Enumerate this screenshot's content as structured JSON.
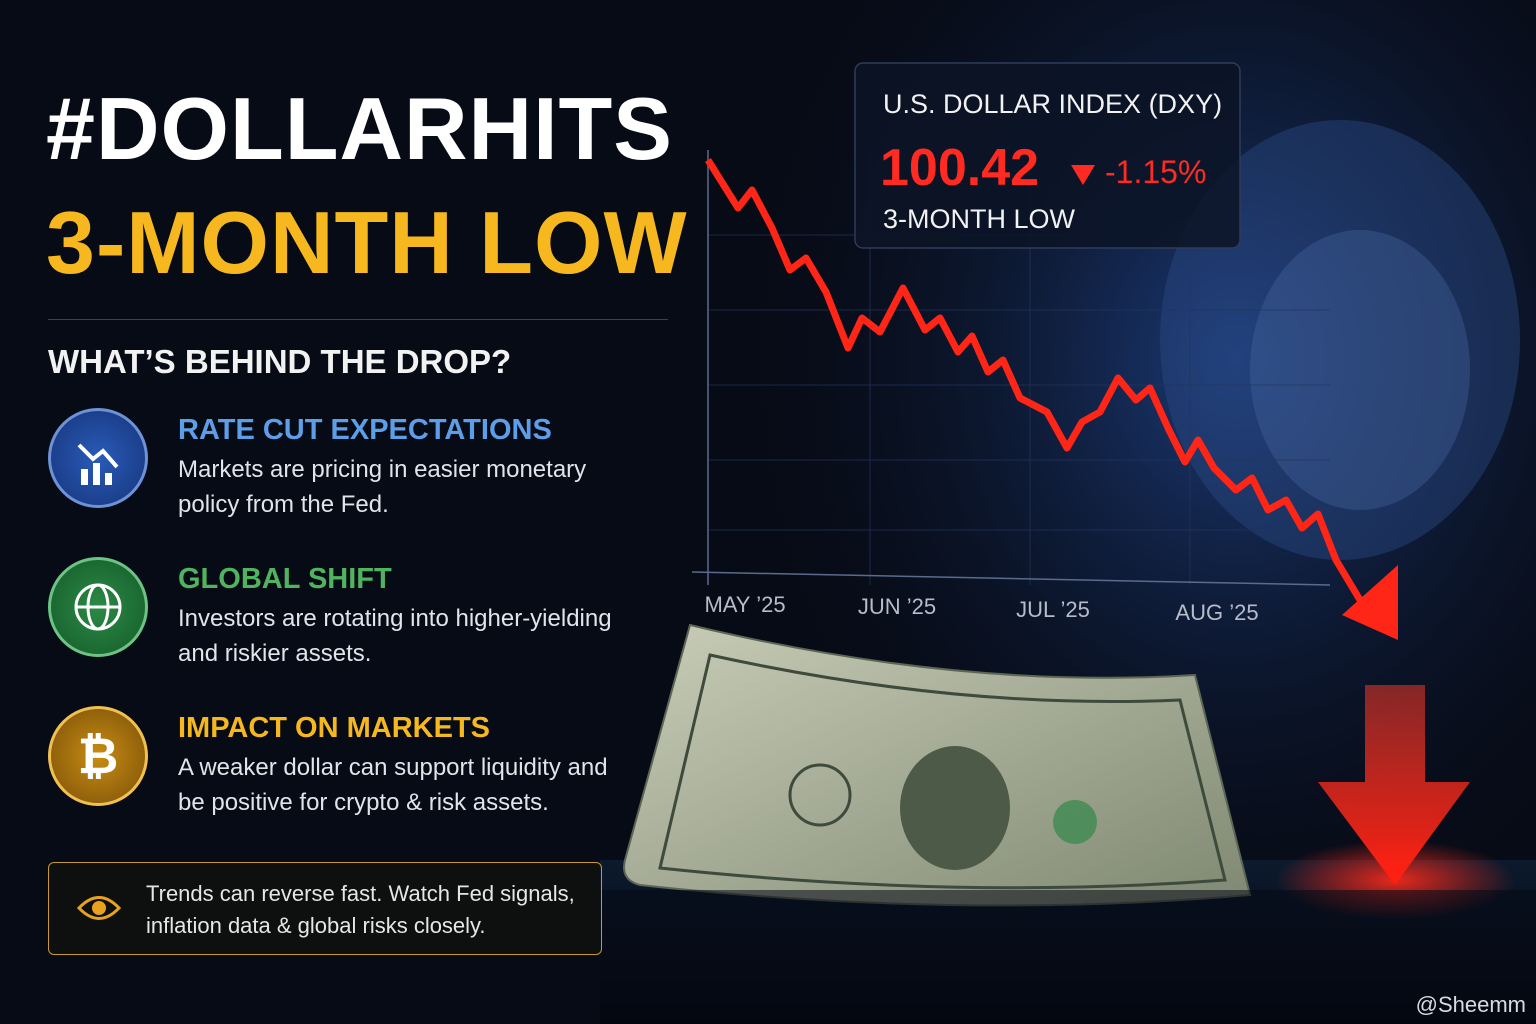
{
  "header": {
    "title": "#DOLLARHITS",
    "subtitle": "3-MONTH LOW"
  },
  "section_title": "WHAT’S BEHIND THE DROP?",
  "reasons": [
    {
      "title": "RATE CUT EXPECTATIONS",
      "text": "Markets are pricing in easier monetary policy from the Fed."
    },
    {
      "title": "GLOBAL SHIFT",
      "text": "Investors are rotating into higher-yielding and riskier assets."
    },
    {
      "title": "IMPACT ON MARKETS",
      "text": "A weaker dollar can support liquidity and be positive for crypto & risk assets."
    }
  ],
  "note": "Trends can reverse fast. Watch Fed signals, inflation data & global risks closely.",
  "ticker": {
    "label": "U.S. DOLLAR INDEX (DXY)",
    "value": "100.42",
    "change": "-1.15%",
    "caption": "3-MONTH LOW"
  },
  "chart_axis": [
    "MAY ’25",
    "JUN ’25",
    "JUL ’25",
    "AUG ’25"
  ],
  "watermark": "@Sheemm"
}
